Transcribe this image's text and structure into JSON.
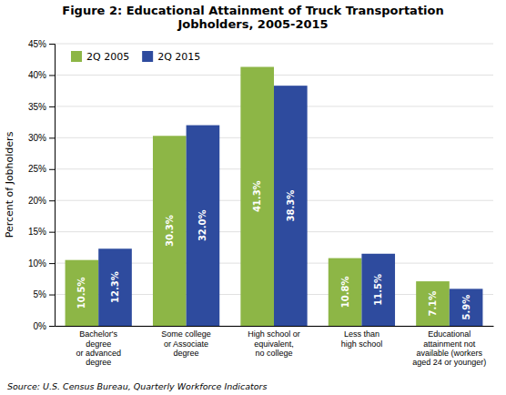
{
  "chart_data": {
    "type": "bar",
    "title": "Figure 2: Educational Attainment of Truck Transportation\nJobholders, 2005-2015",
    "categories": [
      "Bachelor's\ndegree\nor advanced\ndegree",
      "Some college\nor Associate\ndegree",
      "High school or\nequivalent,\nno college",
      "Less than\nhigh school",
      "Educational\nattainment not\navailable (workers\naged 24 or younger)"
    ],
    "series": [
      {
        "name": "2Q 2005",
        "color": "#8db646",
        "values": [
          10.5,
          30.3,
          41.3,
          10.8,
          7.1
        ],
        "value_labels": [
          "10.5%",
          "30.3%",
          "41.3%",
          "10.8%",
          "7.1%"
        ]
      },
      {
        "name": "2Q 2015",
        "color": "#2e4b9e",
        "values": [
          12.3,
          32.0,
          38.3,
          11.5,
          5.9
        ],
        "value_labels": [
          "12.3%",
          "32.0%",
          "38.3%",
          "11.5%",
          "5.9%"
        ]
      }
    ],
    "ylabel": "Percent of Jobholders",
    "ylim": [
      0,
      45
    ],
    "yticks": [
      {
        "value": 0,
        "label": "0%"
      },
      {
        "value": 5,
        "label": "5%"
      },
      {
        "value": 10,
        "label": "10%"
      },
      {
        "value": 15,
        "label": "15%"
      },
      {
        "value": 20,
        "label": "20%"
      },
      {
        "value": 25,
        "label": "25%"
      },
      {
        "value": 30,
        "label": "30%"
      },
      {
        "value": 35,
        "label": "35%"
      },
      {
        "value": 40,
        "label": "40%"
      },
      {
        "value": 45,
        "label": "45%"
      }
    ],
    "grid": true,
    "legend": "upper left",
    "data_labels": true,
    "annotations": [
      "Source: U.S. Census Bureau, Quarterly Workforce Indicators"
    ]
  }
}
